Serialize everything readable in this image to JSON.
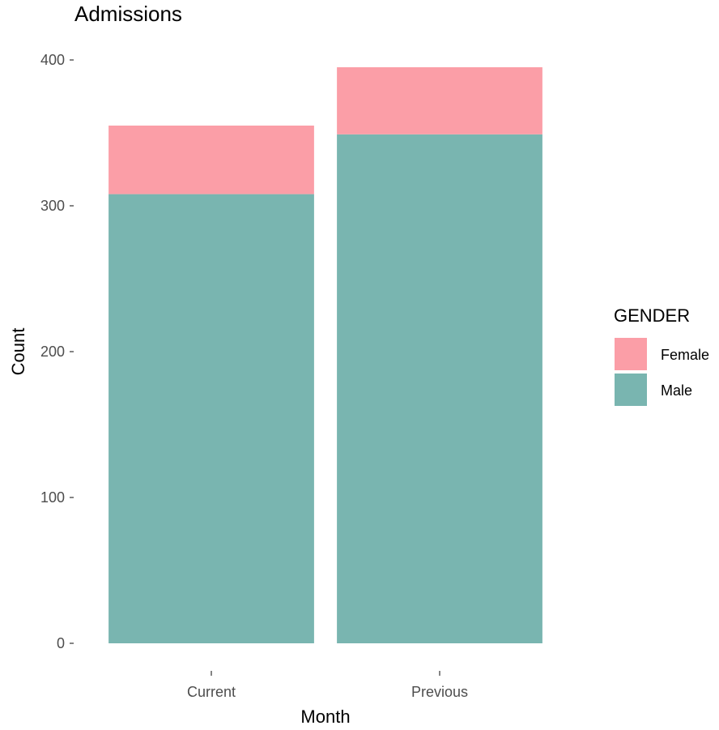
{
  "chart_data": {
    "type": "bar",
    "stacked": true,
    "title": "Admissions",
    "xlabel": "Month",
    "ylabel": "Count",
    "categories": [
      "Current",
      "Previous"
    ],
    "series": [
      {
        "name": "Female",
        "values": [
          47,
          46
        ],
        "color": "#fb9ea7"
      },
      {
        "name": "Male",
        "values": [
          308,
          349
        ],
        "color": "#79b5b0"
      }
    ],
    "stack_order_bottom_to_top": [
      "Male",
      "Female"
    ],
    "totals": [
      355,
      395
    ],
    "ylim": [
      0,
      400
    ],
    "yticks": [
      0,
      100,
      200,
      300,
      400
    ],
    "grid": false,
    "legend": {
      "title": "GENDER",
      "position": "right",
      "entries": [
        "Female",
        "Male"
      ]
    }
  }
}
